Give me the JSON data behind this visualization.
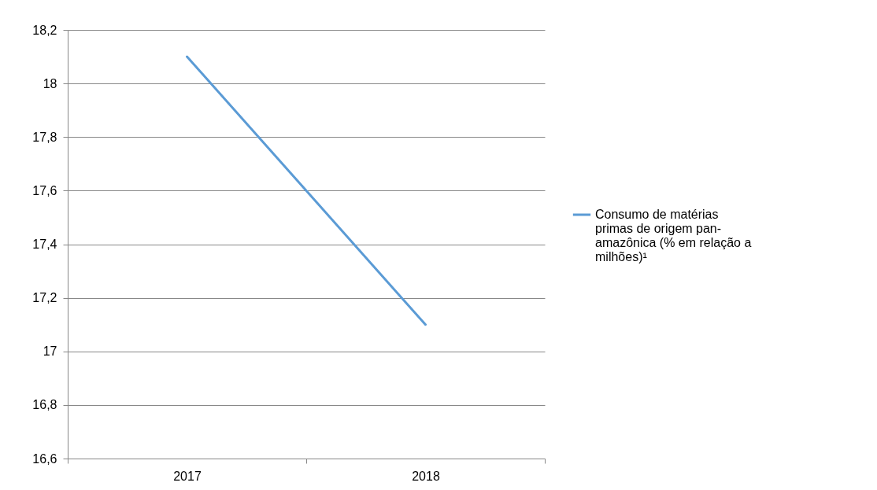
{
  "chart_data": {
    "type": "line",
    "categories": [
      "2017",
      "2018"
    ],
    "series": [
      {
        "name": "Consumo de matérias primas de origem pan-amazônica (% em relação a milhões)¹",
        "color": "#5b9bd5",
        "values": [
          18.1,
          17.1
        ]
      }
    ],
    "ylim": [
      16.6,
      18.2
    ],
    "yticks": [
      {
        "value": 16.6,
        "label": "16,6"
      },
      {
        "value": 16.8,
        "label": "16,8"
      },
      17,
      {
        "value": 17.2,
        "label": "17,2"
      },
      {
        "value": 17.4,
        "label": "17,4"
      },
      {
        "value": 17.6,
        "label": "17,6"
      },
      {
        "value": 17.8,
        "label": "17,8"
      },
      18,
      {
        "value": 18.2,
        "label": "18,2"
      }
    ],
    "grid": "y",
    "legend": "right",
    "marker": "none",
    "line_style": "solid"
  }
}
